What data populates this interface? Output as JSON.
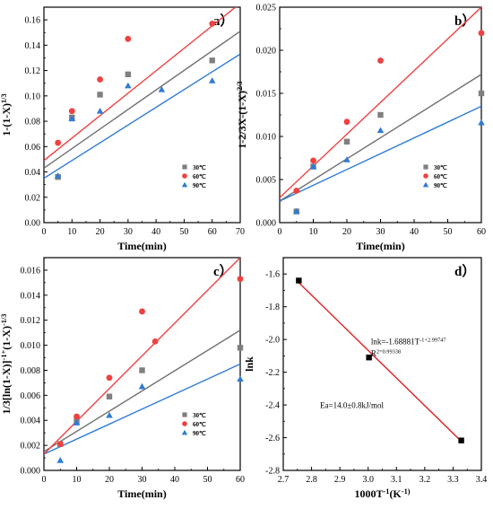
{
  "chart_data": [
    {
      "type": "scatter",
      "panel_label": "a）",
      "xlabel": "Time(min)",
      "ylabel": "1-(1-X)^1/3",
      "xlim": [
        0,
        70
      ],
      "ylim": [
        0,
        0.17
      ],
      "xticks": [
        0,
        10,
        20,
        30,
        40,
        50,
        60,
        70
      ],
      "yticks": [
        0.0,
        0.02,
        0.04,
        0.06,
        0.08,
        0.1,
        0.12,
        0.14,
        0.16
      ],
      "ytick_decimals": 2,
      "legend_position": "bottom-right",
      "series": [
        {
          "name": "30℃",
          "marker": "square",
          "color": "#7f7f7f",
          "x": [
            5,
            10,
            20,
            30,
            60
          ],
          "y": [
            0.036,
            0.083,
            0.101,
            0.117,
            0.128
          ],
          "fit": [
            [
              0,
              0.043
            ],
            [
              70,
              0.151
            ]
          ]
        },
        {
          "name": "60℃",
          "marker": "circle",
          "color": "#f04040",
          "x": [
            5,
            10,
            20,
            30,
            60
          ],
          "y": [
            0.063,
            0.088,
            0.113,
            0.145,
            0.157
          ],
          "fit": [
            [
              0,
              0.049
            ],
            [
              70,
              0.173
            ]
          ]
        },
        {
          "name": "90℃",
          "marker": "triangle",
          "color": "#2e7bd6",
          "x": [
            5,
            10,
            20,
            30,
            42,
            60
          ],
          "y": [
            0.037,
            0.082,
            0.088,
            0.108,
            0.105,
            0.112
          ],
          "fit": [
            [
              0,
              0.035
            ],
            [
              70,
              0.133
            ]
          ]
        }
      ]
    },
    {
      "type": "scatter",
      "panel_label": "b）",
      "xlabel": "Time(min)",
      "ylabel": "1-2/3X-(1-X)^2/3",
      "xlim": [
        0,
        60
      ],
      "ylim": [
        0,
        0.025
      ],
      "xticks": [
        0,
        10,
        20,
        30,
        40,
        50,
        60
      ],
      "yticks": [
        0.0,
        0.005,
        0.01,
        0.015,
        0.02,
        0.025
      ],
      "ytick_decimals": 3,
      "legend_position": "bottom-right",
      "series": [
        {
          "name": "30℃",
          "marker": "square",
          "color": "#7f7f7f",
          "x": [
            5,
            10,
            20,
            30,
            60
          ],
          "y": [
            0.0013,
            0.0065,
            0.0094,
            0.0125,
            0.015
          ],
          "fit": [
            [
              0,
              0.0025
            ],
            [
              60,
              0.0172
            ]
          ]
        },
        {
          "name": "60℃",
          "marker": "circle",
          "color": "#f04040",
          "x": [
            5,
            10,
            20,
            30,
            60
          ],
          "y": [
            0.0037,
            0.0072,
            0.0117,
            0.0188,
            0.022
          ],
          "fit": [
            [
              0,
              0.0029
            ],
            [
              60,
              0.025
            ]
          ]
        },
        {
          "name": "90℃",
          "marker": "triangle",
          "color": "#2e7bd6",
          "x": [
            5,
            10,
            20,
            30,
            60
          ],
          "y": [
            0.0013,
            0.0065,
            0.0073,
            0.0107,
            0.0116
          ],
          "fit": [
            [
              0,
              0.0025
            ],
            [
              60,
              0.0135
            ]
          ]
        }
      ]
    },
    {
      "type": "scatter",
      "panel_label": "c）",
      "xlabel": "Time(min)",
      "ylabel": "1/3[ln(1-X)]^-1+(1-X)^-1/3",
      "xlim": [
        0,
        60
      ],
      "ylim": [
        0,
        0.017
      ],
      "xticks": [
        0,
        10,
        20,
        30,
        40,
        50,
        60
      ],
      "yticks": [
        0.0,
        0.002,
        0.004,
        0.006,
        0.008,
        0.01,
        0.012,
        0.014,
        0.016
      ],
      "ytick_decimals": 3,
      "legend_position": "bottom-right",
      "series": [
        {
          "name": "30℃",
          "marker": "square",
          "color": "#7f7f7f",
          "x": [
            5,
            10,
            20,
            30,
            60
          ],
          "y": [
            0.0021,
            0.0039,
            0.0059,
            0.008,
            0.0098
          ],
          "fit": [
            [
              0,
              0.0015
            ],
            [
              60,
              0.0112
            ]
          ]
        },
        {
          "name": "60℃",
          "marker": "circle",
          "color": "#f04040",
          "x": [
            5,
            10,
            20,
            30,
            34,
            60
          ],
          "y": [
            0.0021,
            0.0043,
            0.0074,
            0.0127,
            0.0103,
            0.0153
          ],
          "fit": [
            [
              0,
              0.0013
            ],
            [
              60,
              0.017
            ]
          ]
        },
        {
          "name": "90℃",
          "marker": "triangle",
          "color": "#2e7bd6",
          "x": [
            5,
            10,
            20,
            30,
            60
          ],
          "y": [
            0.0008,
            0.0038,
            0.0044,
            0.0067,
            0.0073
          ],
          "fit": [
            [
              0,
              0.0013
            ],
            [
              60,
              0.0085
            ]
          ]
        }
      ]
    },
    {
      "type": "scatter",
      "panel_label": "d）",
      "xlabel": "1000T^-1(K^-1)",
      "ylabel": "lnk",
      "xlim": [
        2.7,
        3.4
      ],
      "ylim": [
        -2.8,
        -1.5
      ],
      "xticks": [
        2.7,
        2.8,
        2.9,
        3.0,
        3.1,
        3.2,
        3.3,
        3.4
      ],
      "yticks": [
        -2.8,
        -2.6,
        -2.4,
        -2.2,
        -2.0,
        -1.8,
        -1.6
      ],
      "ytick_decimals": 1,
      "xtick_decimals": 1,
      "series": [
        {
          "marker": "square",
          "color": "#000000",
          "x": [
            2.755,
            3.003,
            3.329
          ],
          "y": [
            -1.64,
            -2.11,
            -2.617
          ],
          "fit": [
            [
              2.755,
              -1.653
            ],
            [
              3.329,
              -2.622
            ]
          ]
        }
      ],
      "annotations": [
        {
          "text": "lnk=-1.68881T^-1+2.99747",
          "x": 3.01,
          "y": -2.03
        },
        {
          "text": "R^2=0.99338",
          "x": 3.01,
          "y": -2.1
        },
        {
          "text": "Ea=14.0±0.8kJ/mol",
          "x": 2.83,
          "y": -2.42
        }
      ]
    }
  ]
}
